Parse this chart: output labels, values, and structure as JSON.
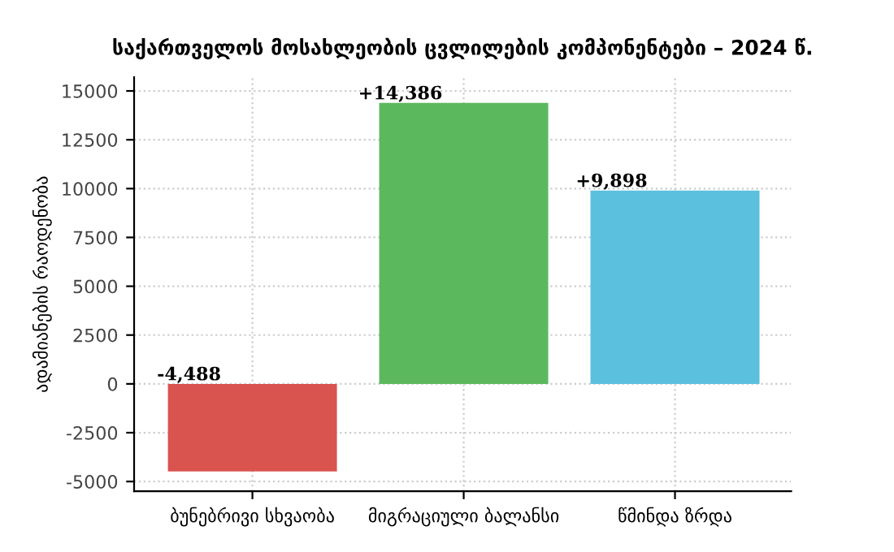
{
  "chart_data": {
    "type": "bar",
    "title": "საქართველოს მოსახლეობის ცვლილების კომპონენტები – 2024 წ.",
    "ylabel": "ადამიანების რაოდენობა",
    "categories": [
      "ბუნებრივი სხვაობა",
      "მიგრაციული ბალანსი",
      "წმინდა ზრდა"
    ],
    "values": [
      -4488,
      14386,
      9898
    ],
    "colors": [
      "#d9534f",
      "#5cb85c",
      "#5bc0de"
    ],
    "value_labels": [
      "-4,488",
      "+14,386",
      "+9,898"
    ],
    "ylim": [
      -5500,
      15700
    ],
    "yticks": [
      -5000,
      -2500,
      0,
      2500,
      5000,
      7500,
      10000,
      12500,
      15000
    ],
    "grid": true,
    "legend": false
  }
}
